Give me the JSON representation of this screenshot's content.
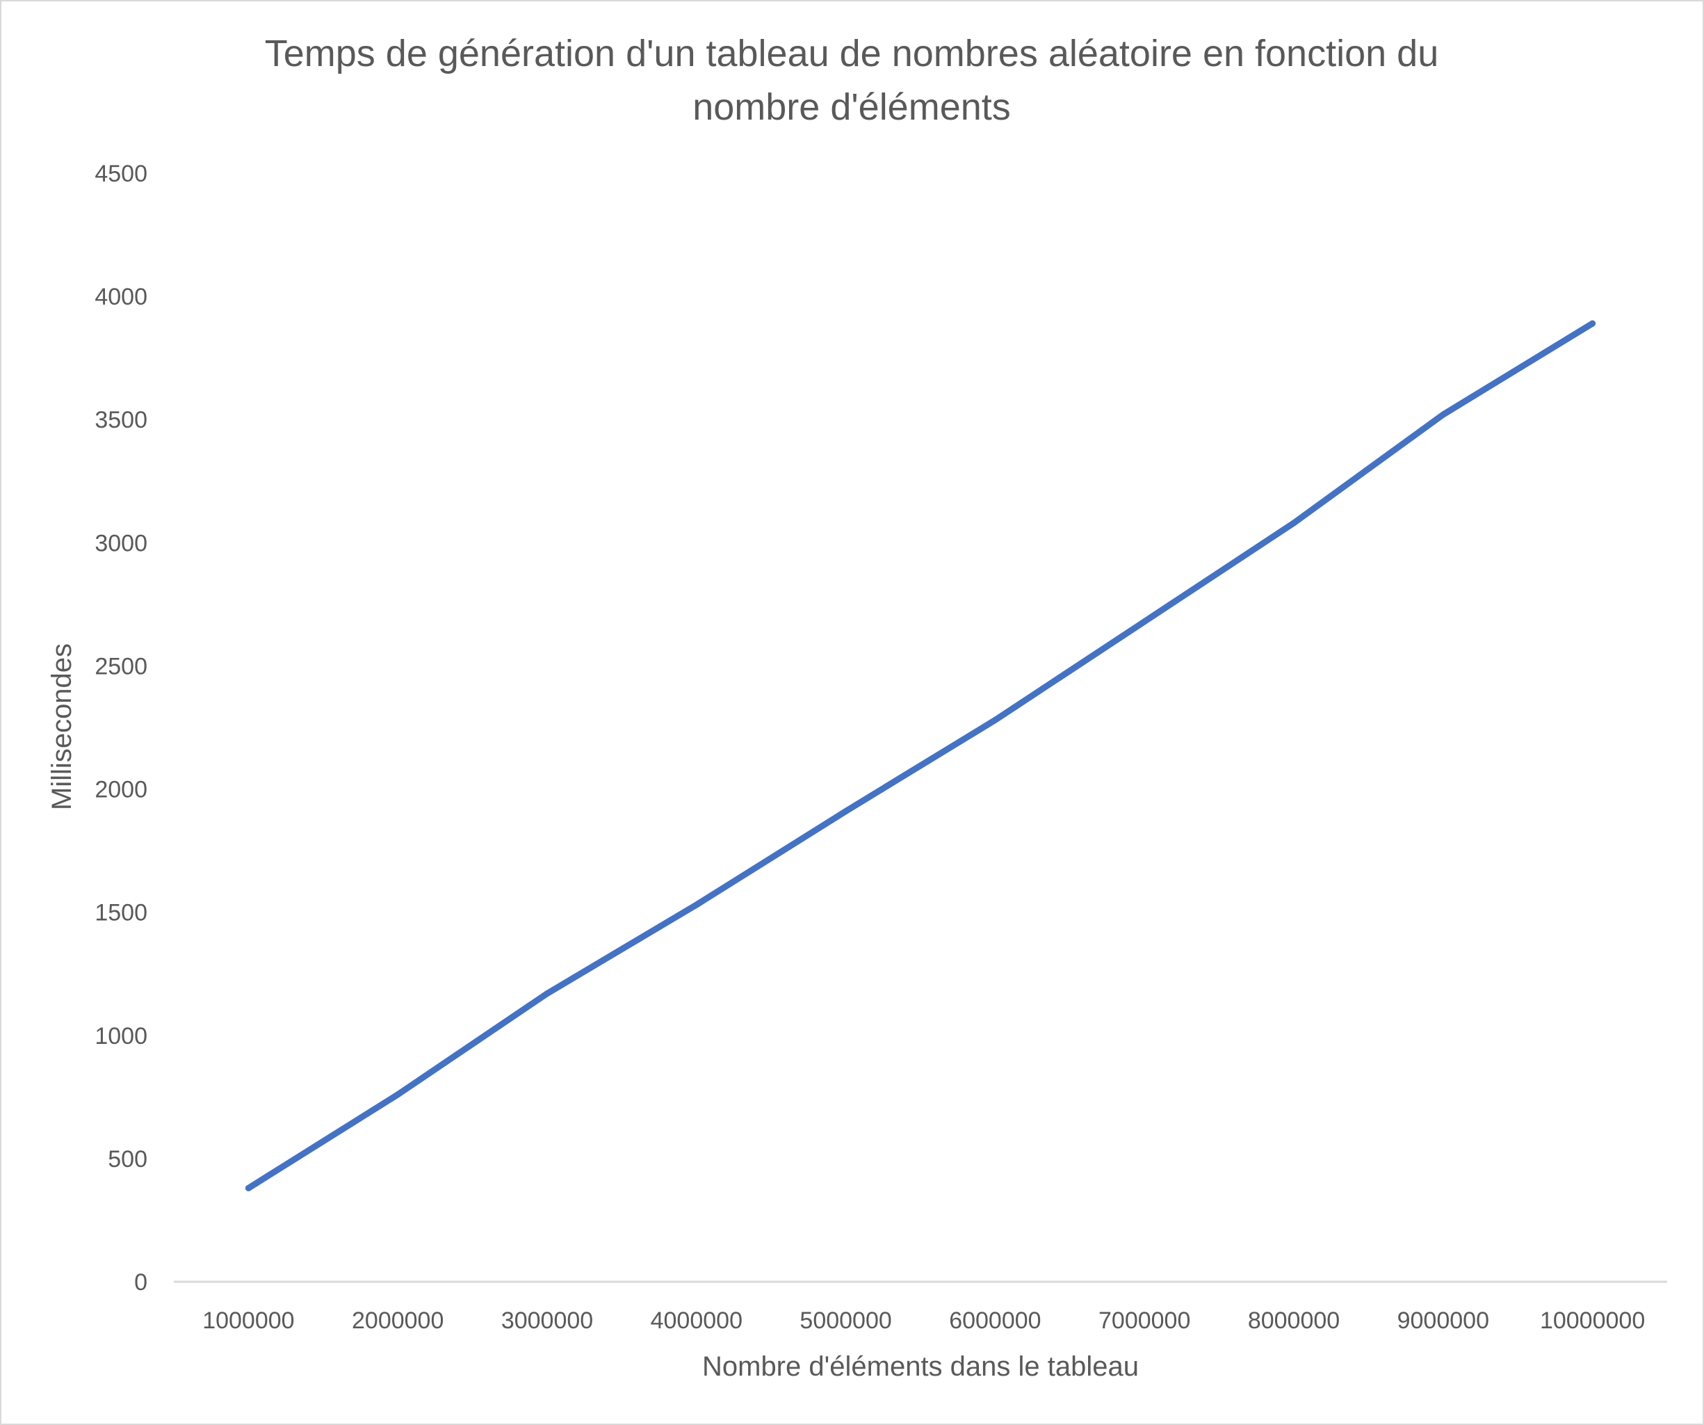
{
  "chart_data": {
    "type": "line",
    "title_lines": [
      "Temps de génération d'un tableau de nombres aléatoire en fonction du",
      "nombre d'éléments"
    ],
    "xlabel": "Nombre d'éléments dans le tableau",
    "ylabel": "Millisecondes",
    "categories": [
      "1000000",
      "2000000",
      "3000000",
      "4000000",
      "5000000",
      "6000000",
      "7000000",
      "8000000",
      "9000000",
      "10000000"
    ],
    "series": [
      {
        "values": [
          380,
          760,
          1170,
          1530,
          1910,
          2280,
          2680,
          3080,
          3520,
          3890
        ]
      }
    ],
    "ylim": [
      0,
      4500
    ],
    "yticks": [
      0,
      500,
      1000,
      1500,
      2000,
      2500,
      3000,
      3500,
      4000,
      4500
    ],
    "grid": false,
    "legend": "none",
    "line_color": "#4472c4",
    "text_color": "#595959",
    "axis_color": "#d9d9d9"
  }
}
